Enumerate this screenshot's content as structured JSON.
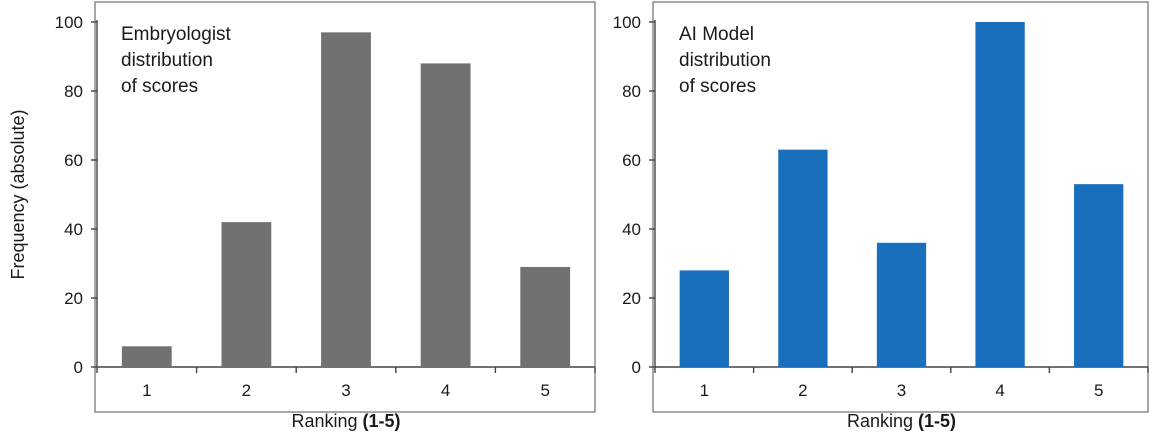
{
  "chart_data": [
    {
      "type": "bar",
      "panel_title_lines": [
        "Embryologist",
        "distribution",
        "of scores"
      ],
      "categories": [
        "1",
        "2",
        "3",
        "4",
        "5"
      ],
      "values": [
        6,
        42,
        97,
        88,
        29
      ],
      "xlabel_prefix": "Ranking ",
      "xlabel_suffix": "(1-5)",
      "ylabel": "Frequency (absolute)",
      "ylim": [
        0,
        100
      ],
      "yticks": [
        "0",
        "20",
        "40",
        "60",
        "80",
        "100"
      ],
      "bar_color": "#737170",
      "grid": false
    },
    {
      "type": "bar",
      "panel_title_lines": [
        "AI Model",
        "distribution",
        "of scores"
      ],
      "categories": [
        "1",
        "2",
        "3",
        "4",
        "5"
      ],
      "values": [
        28,
        63,
        36,
        100,
        53
      ],
      "xlabel_prefix": "Ranking ",
      "xlabel_suffix": "(1-5)",
      "ylabel": "",
      "ylim": [
        0,
        100
      ],
      "yticks": [
        "0",
        "20",
        "40",
        "60",
        "80",
        "100"
      ],
      "bar_color": "#1a6fbc",
      "grid": false
    }
  ]
}
